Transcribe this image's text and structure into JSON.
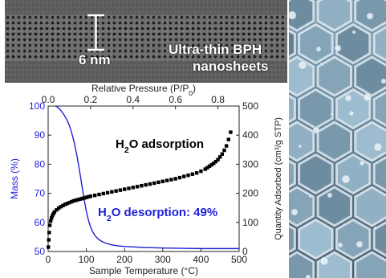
{
  "tem_image": {
    "scale_bar_label": "6 nm",
    "caption_line1": "Ultra-thin BPH",
    "caption_line2": "nanosheets"
  },
  "colors": {
    "mass_curve": "#1f1fd6",
    "adsorption_points": "#000000",
    "desorption_label": "#1f1fd6"
  },
  "chart_data": {
    "type": "line",
    "bottom_axis": {
      "label": "Sample Temperature (°C)",
      "range": [
        0,
        500
      ],
      "ticks": [
        0,
        100,
        200,
        300,
        400,
        500
      ]
    },
    "top_axis": {
      "label": "Relative Pressure (P/P",
      "label_subscript": "0",
      "label_suffix": ")",
      "range": [
        0.0,
        0.9
      ],
      "ticks": [
        "0.0",
        "0.2",
        "0.4",
        "0.6",
        "0.8"
      ]
    },
    "left_axis": {
      "label": "Mass (%)",
      "range": [
        50,
        100
      ],
      "ticks": [
        50,
        60,
        70,
        80,
        90,
        100
      ]
    },
    "right_axis": {
      "label": "Quantity Adsorbed (cm³/g STP)",
      "range": [
        0,
        500
      ],
      "ticks": [
        0,
        100,
        200,
        300,
        400,
        500
      ]
    },
    "annotations": {
      "adsorption_label": "H",
      "adsorption_label_sub": "2",
      "adsorption_label_rest": "O adsorption",
      "desorption_label": "H",
      "desorption_label_sub": "2",
      "desorption_label_rest": "O desorption: 49%"
    },
    "series": [
      {
        "type": "line",
        "axes": "bottom-left",
        "x": [
          20,
          25,
          30,
          35,
          40,
          45,
          50,
          55,
          60,
          65,
          70,
          75,
          80,
          85,
          90,
          95,
          100,
          105,
          110,
          115,
          120,
          125,
          130,
          140,
          150,
          160,
          170,
          180,
          200,
          250,
          300,
          350,
          400,
          450,
          500
        ],
        "y": [
          100,
          99.6,
          99.0,
          98.2,
          97.3,
          96.2,
          95.0,
          93.5,
          91.5,
          89.2,
          86.4,
          83.2,
          79.5,
          75.5,
          71.3,
          67.3,
          63.8,
          61.0,
          58.8,
          57.2,
          56.0,
          55.1,
          54.4,
          53.5,
          52.9,
          52.5,
          52.2,
          52.0,
          51.7,
          51.4,
          51.2,
          51.1,
          51.0,
          51.0,
          51.0
        ]
      },
      {
        "type": "scatter",
        "axes": "top-right",
        "x": [
          0.001,
          0.003,
          0.005,
          0.008,
          0.012,
          0.016,
          0.02,
          0.025,
          0.03,
          0.04,
          0.05,
          0.06,
          0.07,
          0.08,
          0.09,
          0.1,
          0.11,
          0.12,
          0.13,
          0.14,
          0.15,
          0.16,
          0.17,
          0.18,
          0.19,
          0.2,
          0.22,
          0.24,
          0.26,
          0.28,
          0.3,
          0.32,
          0.34,
          0.36,
          0.38,
          0.4,
          0.42,
          0.44,
          0.46,
          0.48,
          0.5,
          0.52,
          0.54,
          0.56,
          0.58,
          0.6,
          0.62,
          0.64,
          0.66,
          0.68,
          0.7,
          0.72,
          0.74,
          0.75,
          0.76,
          0.77,
          0.78,
          0.79,
          0.8,
          0.81,
          0.82,
          0.83,
          0.84,
          0.85,
          0.86
        ],
        "y": [
          15,
          40,
          65,
          90,
          105,
          115,
          123,
          130,
          136,
          143,
          149,
          154,
          158,
          162,
          165,
          168,
          171,
          174,
          176,
          178,
          180,
          182,
          184,
          186,
          188,
          190,
          193,
          196,
          199,
          202,
          205,
          208,
          211,
          214,
          217,
          220,
          223,
          226,
          229,
          232,
          235,
          238,
          241,
          244,
          247,
          250,
          254,
          258,
          262,
          266,
          270,
          276,
          283,
          288,
          293,
          298,
          303,
          309,
          316,
          325,
          335,
          348,
          363,
          385,
          410
        ]
      }
    ]
  }
}
